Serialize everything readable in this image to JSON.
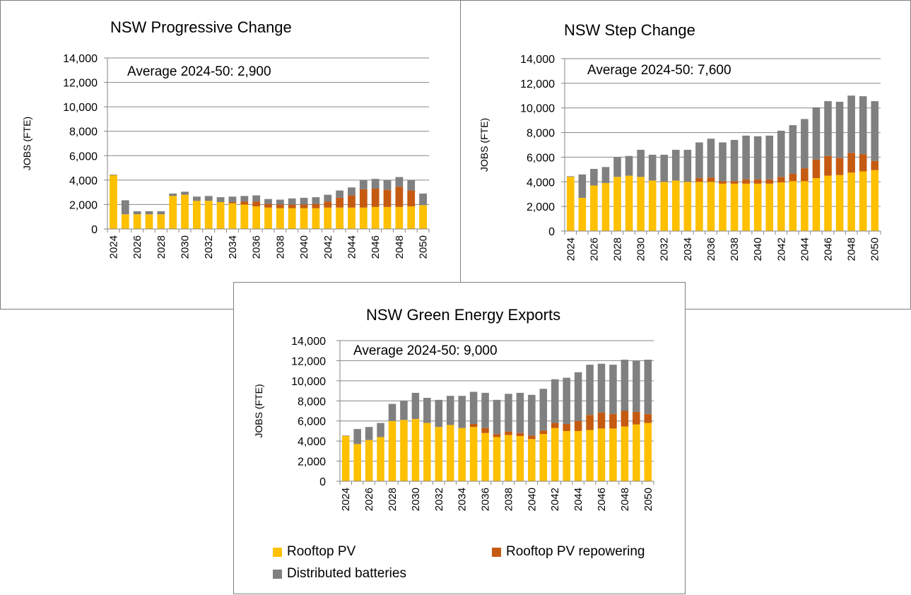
{
  "legend": {
    "items": [
      {
        "label": "Rooftop PV",
        "color": "#FFC000"
      },
      {
        "label": "Rooftop PV repowering",
        "color": "#C55A11"
      },
      {
        "label": "Distributed batteries",
        "color": "#808080"
      }
    ]
  },
  "chart_data": [
    {
      "type": "bar",
      "stacked": true,
      "title": "NSW Progressive Change",
      "annotation": "Average 2024-50: 2,900",
      "ylabel": "JOBS (FTE)",
      "xlabel": "",
      "ylim": [
        0,
        14000
      ],
      "yticks": [
        "0",
        "2,000",
        "4,000",
        "6,000",
        "8,000",
        "10,000",
        "12,000",
        "14,000"
      ],
      "ytick_values": [
        0,
        2000,
        4000,
        6000,
        8000,
        10000,
        12000,
        14000
      ],
      "grid": true,
      "categories": [
        "2024",
        "2025",
        "2026",
        "2027",
        "2028",
        "2029",
        "2030",
        "2031",
        "2032",
        "2033",
        "2034",
        "2035",
        "2036",
        "2037",
        "2038",
        "2039",
        "2040",
        "2041",
        "2042",
        "2043",
        "2044",
        "2045",
        "2046",
        "2047",
        "2048",
        "2049",
        "2050"
      ],
      "xtick_labels": [
        "2024",
        "2026",
        "2028",
        "2030",
        "2032",
        "2034",
        "2036",
        "2038",
        "2040",
        "2042",
        "2044",
        "2046",
        "2048",
        "2050"
      ],
      "series": [
        {
          "name": "Rooftop PV",
          "values": [
            4400,
            1200,
            1200,
            1200,
            1200,
            2700,
            2800,
            2300,
            2300,
            2200,
            2100,
            2000,
            1850,
            1750,
            1700,
            1700,
            1700,
            1700,
            1750,
            1750,
            1750,
            1750,
            1800,
            1800,
            1800,
            1850,
            1950
          ]
        },
        {
          "name": "Rooftop PV repowering",
          "values": [
            0,
            0,
            0,
            0,
            0,
            0,
            0,
            0,
            0,
            0,
            100,
            250,
            400,
            300,
            300,
            300,
            300,
            350,
            500,
            800,
            1000,
            1500,
            1500,
            1400,
            1650,
            1300,
            0
          ]
        },
        {
          "name": "Distributed batteries",
          "values": [
            50,
            1150,
            250,
            250,
            250,
            200,
            250,
            350,
            400,
            400,
            450,
            450,
            500,
            400,
            400,
            500,
            550,
            550,
            550,
            600,
            650,
            750,
            800,
            800,
            800,
            850,
            950
          ]
        }
      ]
    },
    {
      "type": "bar",
      "stacked": true,
      "title": "NSW Step Change",
      "annotation": "Average 2024-50: 7,600",
      "ylabel": "JOBS (FTE)",
      "xlabel": "",
      "ylim": [
        0,
        14000
      ],
      "yticks": [
        "0",
        "2,000",
        "4,000",
        "6,000",
        "8,000",
        "10,000",
        "12,000",
        "14,000"
      ],
      "ytick_values": [
        0,
        2000,
        4000,
        6000,
        8000,
        10000,
        12000,
        14000
      ],
      "grid": true,
      "categories": [
        "2024",
        "2025",
        "2026",
        "2027",
        "2028",
        "2029",
        "2030",
        "2031",
        "2032",
        "2033",
        "2034",
        "2035",
        "2036",
        "2037",
        "2038",
        "2039",
        "2040",
        "2041",
        "2042",
        "2043",
        "2044",
        "2045",
        "2046",
        "2047",
        "2048",
        "2049",
        "2050"
      ],
      "xtick_labels": [
        "2024",
        "2026",
        "2028",
        "2030",
        "2032",
        "2034",
        "2036",
        "2038",
        "2040",
        "2042",
        "2044",
        "2046",
        "2048",
        "2050"
      ],
      "series": [
        {
          "name": "Rooftop PV",
          "values": [
            4400,
            2700,
            3700,
            3900,
            4400,
            4500,
            4400,
            4100,
            4000,
            4100,
            4000,
            4000,
            4000,
            3850,
            3850,
            3850,
            3850,
            3850,
            3950,
            4050,
            4050,
            4300,
            4500,
            4550,
            4750,
            4850,
            4950
          ]
        },
        {
          "name": "Rooftop PV repowering",
          "values": [
            0,
            0,
            0,
            0,
            0,
            0,
            0,
            0,
            0,
            0,
            0,
            300,
            350,
            200,
            200,
            350,
            350,
            350,
            450,
            600,
            1050,
            1500,
            1600,
            1400,
            1600,
            1400,
            750
          ]
        },
        {
          "name": "Distributed batteries",
          "values": [
            50,
            1900,
            1350,
            1300,
            1600,
            1600,
            2200,
            2100,
            2200,
            2500,
            2600,
            2900,
            3150,
            3150,
            3350,
            3550,
            3500,
            3550,
            3750,
            3950,
            4000,
            4250,
            4450,
            4550,
            4650,
            4700,
            4850
          ]
        }
      ]
    },
    {
      "type": "bar",
      "stacked": true,
      "title": "NSW Green Energy Exports",
      "annotation": "Average 2024-50: 9,000",
      "ylabel": "JOBS (FTE)",
      "xlabel": "",
      "ylim": [
        0,
        14000
      ],
      "yticks": [
        "0",
        "2,000",
        "4,000",
        "6,000",
        "8,000",
        "10,000",
        "12,000",
        "14,000"
      ],
      "ytick_values": [
        0,
        2000,
        4000,
        6000,
        8000,
        10000,
        12000,
        14000
      ],
      "grid": true,
      "legend_position": "bottom",
      "categories": [
        "2024",
        "2025",
        "2026",
        "2027",
        "2028",
        "2029",
        "2030",
        "2031",
        "2032",
        "2033",
        "2034",
        "2035",
        "2036",
        "2037",
        "2038",
        "2039",
        "2040",
        "2041",
        "2042",
        "2043",
        "2044",
        "2045",
        "2046",
        "2047",
        "2048",
        "2049",
        "2050"
      ],
      "xtick_labels": [
        "2024",
        "2026",
        "2028",
        "2030",
        "2032",
        "2034",
        "2036",
        "2038",
        "2040",
        "2042",
        "2044",
        "2046",
        "2048",
        "2050"
      ],
      "series": [
        {
          "name": "Rooftop PV",
          "values": [
            4500,
            3700,
            4100,
            4400,
            6000,
            6100,
            6200,
            5800,
            5400,
            5600,
            5300,
            5400,
            4800,
            4400,
            4600,
            4500,
            4200,
            4700,
            5300,
            5000,
            5000,
            5100,
            5250,
            5250,
            5450,
            5650,
            5800
          ]
        },
        {
          "name": "Rooftop PV repowering",
          "values": [
            0,
            0,
            0,
            0,
            0,
            0,
            0,
            0,
            0,
            0,
            0,
            300,
            500,
            300,
            350,
            300,
            350,
            350,
            500,
            700,
            1000,
            1500,
            1600,
            1450,
            1550,
            1250,
            900
          ]
        },
        {
          "name": "Distributed batteries",
          "values": [
            50,
            1500,
            1300,
            1400,
            1700,
            1900,
            2600,
            2500,
            2700,
            2900,
            3200,
            3200,
            3500,
            3400,
            3750,
            4000,
            4050,
            4150,
            4350,
            4600,
            4850,
            5000,
            4850,
            4900,
            5100,
            5100,
            5400
          ]
        }
      ]
    }
  ]
}
